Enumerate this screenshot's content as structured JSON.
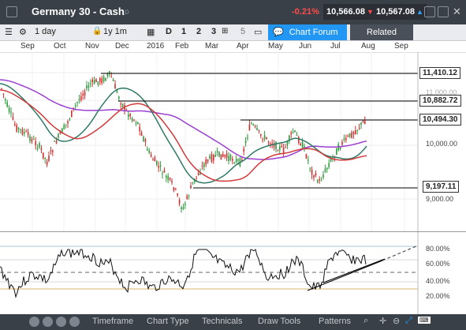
{
  "header": {
    "title": "Germany 30 - Cash",
    "change": "-0.21%",
    "sell_price": "10,566.08",
    "buy_price": "10,567.08"
  },
  "toolbar": {
    "interval": "1 day",
    "range": "1y 1m",
    "view_buttons": [
      "D",
      "1",
      "2",
      "3",
      "5"
    ],
    "chart_forum": "Chart Forum",
    "related": "Related"
  },
  "months": [
    "Sep",
    "Oct",
    "Nov",
    "Dec",
    "2016",
    "Feb",
    "Mar",
    "Apr",
    "May",
    "Jun",
    "Jul",
    "Aug",
    "Sep"
  ],
  "price_axis": {
    "levels": [
      "11,410.12",
      "10,882.72",
      "10,494.30",
      "10,000.00",
      "9,197.11",
      "9,000.00"
    ],
    "dimmed": "11,000.00"
  },
  "rsi_axis": [
    "80.00%",
    "60.00%",
    "40.00%",
    "20.00%"
  ],
  "bottom_nav": [
    "Timeframe",
    "Chart Type",
    "Technicals",
    "Draw Tools",
    "Patterns"
  ],
  "colors": {
    "ma_fast": "#d23a3a",
    "ma_mid": "#2f7a67",
    "ma_slow": "#9b3fd1",
    "candle_up": "#2e9b3c",
    "candle_down": "#d22c2c",
    "header_bg": "#3a4048",
    "forum_bg": "#2196f3"
  }
}
